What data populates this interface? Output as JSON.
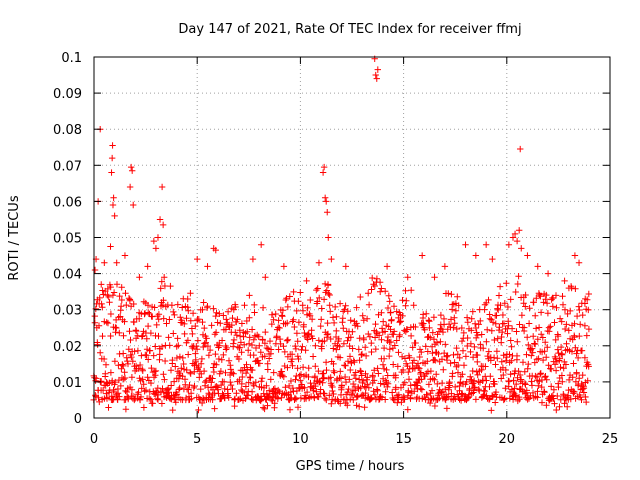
{
  "chart_data": {
    "type": "scatter",
    "title": "Day 147 of 2021, Rate Of TEC Index for receiver ffmj",
    "xlabel": "GPS time / hours",
    "ylabel": "ROTI / TECUs",
    "xlim": [
      0,
      25
    ],
    "ylim": [
      0,
      0.1
    ],
    "grid": true,
    "marker": "+",
    "series_color": "#ff0000",
    "x_ticks": [
      "0",
      "5",
      "10",
      "15",
      "20",
      "25"
    ],
    "y_ticks": [
      "0",
      "0.01",
      "0.02",
      "0.03",
      "0.04",
      "0.05",
      "0.06",
      "0.07",
      "0.08",
      "0.09",
      "0.1"
    ],
    "x_tick_values": [
      0,
      5,
      10,
      15,
      20,
      25
    ],
    "y_tick_values": [
      0,
      0.01,
      0.02,
      0.03,
      0.04,
      0.05,
      0.06,
      0.07,
      0.08,
      0.09,
      0.1
    ],
    "series": [
      {
        "name": "ROTI",
        "points": [
          [
            0.05,
            0.041
          ],
          [
            0.1,
            0.044
          ],
          [
            0.2,
            0.06
          ],
          [
            0.3,
            0.08
          ],
          [
            0.35,
            0.037
          ],
          [
            0.5,
            0.043
          ],
          [
            0.65,
            0.034
          ],
          [
            0.8,
            0.0475
          ],
          [
            0.85,
            0.068
          ],
          [
            0.88,
            0.072
          ],
          [
            0.9,
            0.0755
          ],
          [
            0.92,
            0.059
          ],
          [
            0.95,
            0.061
          ],
          [
            1.0,
            0.056
          ],
          [
            1.1,
            0.043
          ],
          [
            1.5,
            0.045
          ],
          [
            1.75,
            0.064
          ],
          [
            1.8,
            0.0695
          ],
          [
            1.85,
            0.0685
          ],
          [
            1.9,
            0.059
          ],
          [
            2.2,
            0.039
          ],
          [
            2.6,
            0.042
          ],
          [
            2.9,
            0.049
          ],
          [
            3.0,
            0.047
          ],
          [
            3.1,
            0.05
          ],
          [
            3.2,
            0.055
          ],
          [
            3.3,
            0.064
          ],
          [
            3.35,
            0.0535
          ],
          [
            3.4,
            0.039
          ],
          [
            5.0,
            0.044
          ],
          [
            5.5,
            0.042
          ],
          [
            5.8,
            0.047
          ],
          [
            5.9,
            0.0465
          ],
          [
            7.7,
            0.044
          ],
          [
            8.1,
            0.048
          ],
          [
            8.3,
            0.039
          ],
          [
            9.2,
            0.042
          ],
          [
            10.3,
            0.038
          ],
          [
            10.9,
            0.043
          ],
          [
            11.1,
            0.068
          ],
          [
            11.15,
            0.0695
          ],
          [
            11.2,
            0.061
          ],
          [
            11.25,
            0.06
          ],
          [
            11.3,
            0.057
          ],
          [
            11.35,
            0.05
          ],
          [
            11.5,
            0.044
          ],
          [
            12.2,
            0.042
          ],
          [
            13.6,
            0.0995
          ],
          [
            13.65,
            0.095
          ],
          [
            13.7,
            0.094
          ],
          [
            13.75,
            0.0965
          ],
          [
            14.2,
            0.042
          ],
          [
            15.2,
            0.039
          ],
          [
            15.9,
            0.045
          ],
          [
            16.5,
            0.039
          ],
          [
            17.0,
            0.042
          ],
          [
            18.0,
            0.048
          ],
          [
            18.5,
            0.045
          ],
          [
            19.0,
            0.048
          ],
          [
            19.3,
            0.044
          ],
          [
            20.1,
            0.048
          ],
          [
            20.3,
            0.05
          ],
          [
            20.4,
            0.051
          ],
          [
            20.5,
            0.049
          ],
          [
            20.6,
            0.052
          ],
          [
            20.65,
            0.0745
          ],
          [
            20.7,
            0.047
          ],
          [
            21.0,
            0.045
          ],
          [
            21.5,
            0.042
          ],
          [
            22.0,
            0.04
          ],
          [
            22.8,
            0.038
          ],
          [
            23.3,
            0.045
          ],
          [
            23.5,
            0.043
          ],
          [
            23.8,
            0.033
          ]
        ],
        "baseline_band": {
          "min": 0.002,
          "typical_low": 0.005,
          "typical_high": 0.03,
          "x_start": 0,
          "x_end": 24
        }
      }
    ]
  }
}
